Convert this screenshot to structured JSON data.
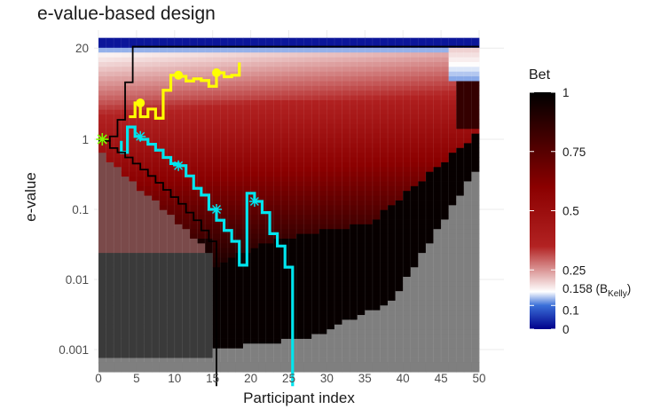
{
  "chart_data": {
    "type": "heatmap",
    "title": "e-value-based design",
    "xlabel": "Participant index",
    "ylabel": "e-value",
    "xlim": [
      0,
      50
    ],
    "ylim": [
      0.0005,
      30
    ],
    "y_scale": "log",
    "x_ticks": [
      0,
      5,
      10,
      15,
      20,
      25,
      30,
      35,
      40,
      45,
      50
    ],
    "y_ticks": [
      {
        "value": 20,
        "label": "20"
      },
      {
        "value": 1,
        "label": "1"
      },
      {
        "value": 0.1,
        "label": "0.1"
      },
      {
        "value": 0.01,
        "label": "0.01"
      },
      {
        "value": 0.001,
        "label": "0.001"
      }
    ],
    "grid": true,
    "fill_scale": {
      "name": "Bet",
      "colors": [
        "#00008b",
        "#3a6fd8",
        "#ffffff",
        "#b22222",
        "#8b0000",
        "#000000"
      ],
      "stops": [
        0,
        0.1,
        0.158,
        0.35,
        0.6,
        1
      ],
      "breaks": [
        {
          "value": 0,
          "label": "0"
        },
        {
          "value": 0.1,
          "label": "0.1"
        },
        {
          "value": 0.158,
          "label": "0.158 (B",
          "sub": "Kelly",
          "suffix": ")"
        },
        {
          "value": 0.25,
          "label": "0.25"
        },
        {
          "value": 0.5,
          "label": "0.5"
        },
        {
          "value": 0.75,
          "label": "0.75"
        },
        {
          "value": 1,
          "label": "1"
        }
      ]
    },
    "series": [
      {
        "color": "#ffff00",
        "path": [
          [
            4,
            2.1
          ],
          [
            4.8,
            2.1
          ],
          [
            4.8,
            3.3
          ],
          [
            5.5,
            3.3
          ],
          [
            5.5,
            2.1
          ],
          [
            6.5,
            2.1
          ],
          [
            6.5,
            2.7
          ],
          [
            7.5,
            2.7
          ],
          [
            7.5,
            2.0
          ],
          [
            8.5,
            2.0
          ],
          [
            8.5,
            5.0
          ],
          [
            9.5,
            5.0
          ],
          [
            9.5,
            8.2
          ],
          [
            10.5,
            8.2
          ],
          [
            10.5,
            7.9
          ],
          [
            11.5,
            7.9
          ],
          [
            11.5,
            6.8
          ],
          [
            12.5,
            6.8
          ],
          [
            12.5,
            7.3
          ],
          [
            13.5,
            7.3
          ],
          [
            13.5,
            6.9
          ],
          [
            14.5,
            6.9
          ],
          [
            14.5,
            5.7
          ],
          [
            15.5,
            5.7
          ],
          [
            15.5,
            8.9
          ],
          [
            16.5,
            8.9
          ],
          [
            16.5,
            7.8
          ],
          [
            17.5,
            7.8
          ],
          [
            17.5,
            8.2
          ],
          [
            18.5,
            8.2
          ],
          [
            18.5,
            12.5
          ]
        ],
        "markers": [
          [
            5.5,
            3.3
          ],
          [
            10.5,
            8.2
          ],
          [
            15.5,
            8.9
          ]
        ]
      },
      {
        "color": "#00e5ee",
        "path": [
          [
            3,
            0.95
          ],
          [
            3,
            0.65
          ],
          [
            3.8,
            0.65
          ],
          [
            3.8,
            1.5
          ],
          [
            4.8,
            1.5
          ],
          [
            4.8,
            1.1
          ],
          [
            5.5,
            1.1
          ],
          [
            5.5,
            1.0
          ],
          [
            6.5,
            1.0
          ],
          [
            6.5,
            0.85
          ],
          [
            7.5,
            0.85
          ],
          [
            7.5,
            0.7
          ],
          [
            8.5,
            0.7
          ],
          [
            8.5,
            0.55
          ],
          [
            9.5,
            0.55
          ],
          [
            9.5,
            0.45
          ],
          [
            10.5,
            0.45
          ],
          [
            10.5,
            0.42
          ],
          [
            11.5,
            0.42
          ],
          [
            11.5,
            0.3
          ],
          [
            12.5,
            0.3
          ],
          [
            12.5,
            0.2
          ],
          [
            13.5,
            0.2
          ],
          [
            13.5,
            0.16
          ],
          [
            14.5,
            0.16
          ],
          [
            14.5,
            0.1
          ],
          [
            15.5,
            0.1
          ],
          [
            15.5,
            0.07
          ],
          [
            16.5,
            0.07
          ],
          [
            16.5,
            0.05
          ],
          [
            17.5,
            0.05
          ],
          [
            17.5,
            0.035
          ],
          [
            18.5,
            0.035
          ],
          [
            18.5,
            0.016
          ],
          [
            19.5,
            0.016
          ],
          [
            19.5,
            0.17
          ],
          [
            20.5,
            0.17
          ],
          [
            20.5,
            0.13
          ],
          [
            21.5,
            0.13
          ],
          [
            21.5,
            0.09
          ],
          [
            22.5,
            0.09
          ],
          [
            22.5,
            0.045
          ],
          [
            23.5,
            0.045
          ],
          [
            23.5,
            0.03
          ],
          [
            24.5,
            0.03
          ],
          [
            24.5,
            0.015
          ],
          [
            25.5,
            0.015
          ],
          [
            25.5,
            0.0003
          ]
        ],
        "markers": [
          [
            5.5,
            1.1
          ],
          [
            10.5,
            0.42
          ],
          [
            15.5,
            0.1
          ],
          [
            20.5,
            0.13
          ]
        ]
      },
      {
        "color": "#000000",
        "path": [
          [
            0,
            0.95
          ],
          [
            1.5,
            0.95
          ],
          [
            1.5,
            1.1
          ],
          [
            2.5,
            1.1
          ],
          [
            2.5,
            1.9
          ],
          [
            3.5,
            1.9
          ],
          [
            3.5,
            6.5
          ],
          [
            4.5,
            6.5
          ],
          [
            4.5,
            21
          ],
          [
            50,
            21
          ]
        ],
        "markers": []
      },
      {
        "color": "#000000",
        "path": [
          [
            0,
            0.95
          ],
          [
            1.5,
            0.95
          ],
          [
            1.5,
            0.75
          ],
          [
            2.5,
            0.75
          ],
          [
            2.5,
            0.65
          ],
          [
            3.5,
            0.65
          ],
          [
            3.5,
            0.55
          ],
          [
            4.5,
            0.55
          ],
          [
            4.5,
            0.45
          ],
          [
            5.5,
            0.45
          ],
          [
            5.5,
            0.37
          ],
          [
            6.5,
            0.37
          ],
          [
            6.5,
            0.3
          ],
          [
            7.5,
            0.3
          ],
          [
            7.5,
            0.24
          ],
          [
            8.5,
            0.24
          ],
          [
            8.5,
            0.19
          ],
          [
            9.5,
            0.19
          ],
          [
            9.5,
            0.15
          ],
          [
            10.5,
            0.15
          ],
          [
            10.5,
            0.12
          ],
          [
            11.5,
            0.12
          ],
          [
            11.5,
            0.09
          ],
          [
            12.5,
            0.09
          ],
          [
            12.5,
            0.07
          ],
          [
            13.5,
            0.07
          ],
          [
            13.5,
            0.05
          ],
          [
            14.5,
            0.05
          ],
          [
            14.5,
            0.035
          ],
          [
            15.5,
            0.035
          ],
          [
            15.5,
            0.0003
          ]
        ],
        "markers": []
      }
    ],
    "start_marker": {
      "x": 0.5,
      "y": 1,
      "color": "#7cfc00"
    }
  }
}
